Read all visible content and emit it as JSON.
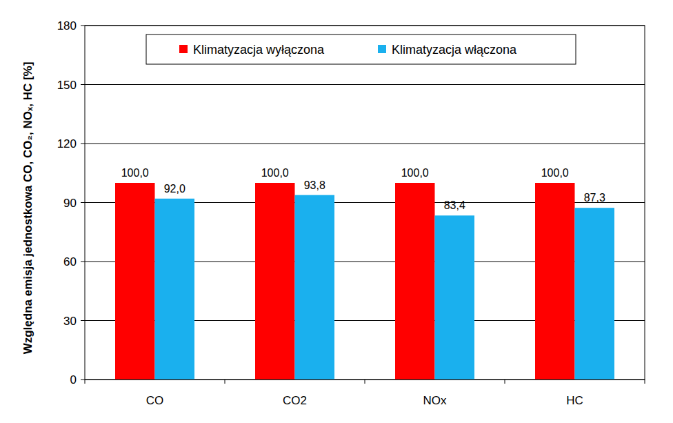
{
  "chart_data": {
    "type": "bar",
    "y_label": "Względna emisja jednostkowa  CO, CO₂, NOₓ, HC [%]",
    "categories": [
      "CO",
      "CO2",
      "NOx",
      "HC"
    ],
    "series": [
      {
        "name": "Klimatyzacja wyłączona",
        "color": "#ff0000",
        "values": [
          100,
          100,
          100,
          100
        ],
        "value_labels": [
          "100,0",
          "100,0",
          "100,0",
          "100,0"
        ]
      },
      {
        "name": "Klimatyzacja włączona",
        "color": "#1ab0ee",
        "values": [
          92,
          93.8,
          83.4,
          87.3
        ],
        "value_labels": [
          "92,0",
          "93,8",
          "83,4",
          "87,3"
        ]
      }
    ],
    "ylim": [
      0,
      180
    ],
    "yticks": [
      0,
      30,
      60,
      90,
      120,
      150,
      180
    ],
    "grid": true,
    "legend": "top",
    "data_labels": true
  }
}
